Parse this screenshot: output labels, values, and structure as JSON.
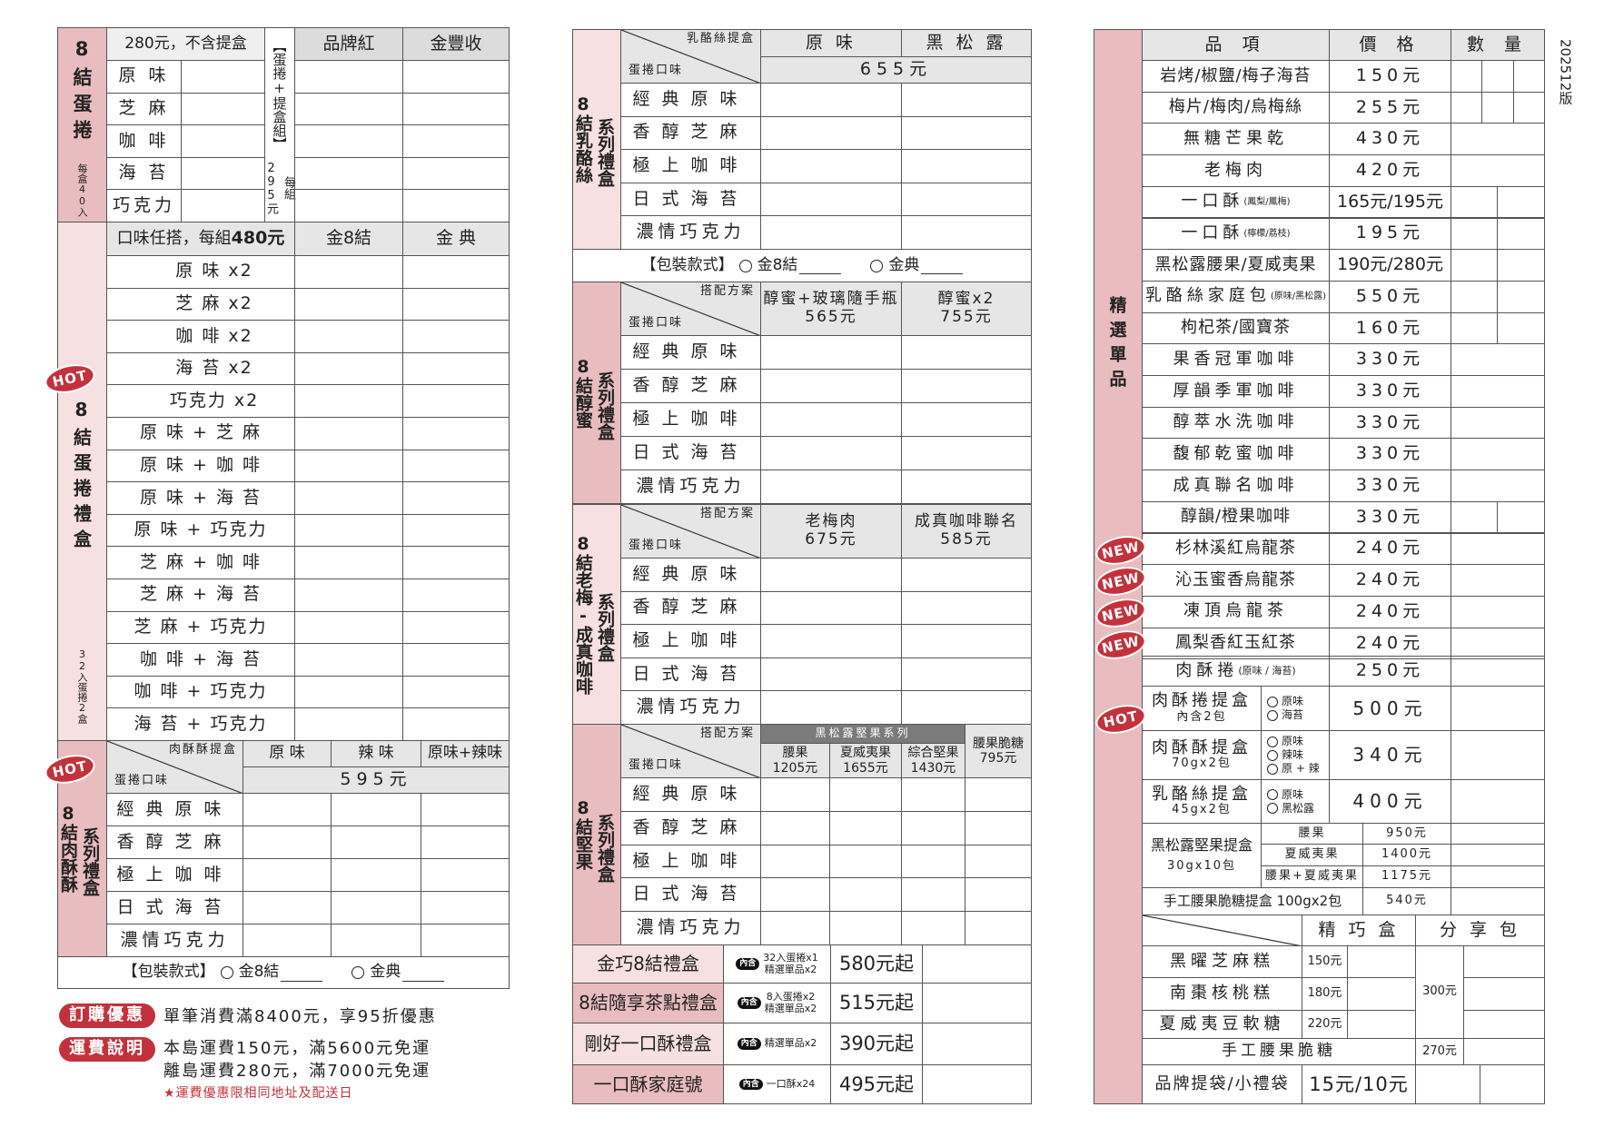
{
  "colors": {
    "pink_dark": "#e9bcbf",
    "pink_light": "#f6e0e1",
    "header_grey": "#e6e6e6",
    "group_grey": "#7b7b7b",
    "badge_red": "#c3323c",
    "note_red": "#c3323c"
  },
  "version": "202512版",
  "left": {
    "eggroll": {
      "label": "8結蛋捲",
      "sublabel": "每盒40入",
      "price_note": "280元，不含提盒",
      "flavors": [
        "原 味",
        "芝 麻",
        "咖 啡",
        "海 苔",
        "巧克力"
      ],
      "set_label": "【蛋捲+提盒組】",
      "set_price": "每組295元",
      "box_headers": [
        "品牌紅",
        "金豐收"
      ]
    },
    "gift": {
      "label": "8結蛋捲禮盒",
      "sublabel": "32入蛋捲2盒",
      "badge": "HOT",
      "header": "口味任搭，每組",
      "header_price": "480元",
      "box_headers": [
        "金8結",
        "金 典"
      ],
      "combos": [
        "原 味 x2",
        "芝 麻 x2",
        "咖 啡 x2",
        "海 苔 x2",
        "巧克力 x2",
        "原 味 + 芝 麻",
        "原 味 + 咖 啡",
        "原 味 + 海 苔",
        "原 味 + 巧克力",
        "芝 麻 + 咖 啡",
        "芝 麻 + 海 苔",
        "芝 麻 + 巧克力",
        "咖 啡 + 海 苔",
        "咖 啡 + 巧克力",
        "海 苔 + 巧克力"
      ]
    },
    "pork": {
      "label": "8結肉酥酥",
      "series": "系列禮盒",
      "badge": "HOT",
      "diag_top": "肉酥酥提盒",
      "diag_bottom": "蛋捲口味",
      "columns": [
        "原 味",
        "辣 味",
        "原味+辣味"
      ],
      "price": "595元",
      "flavors": [
        "經典原味",
        "香醇芝麻",
        "極上咖啡",
        "日式海苔",
        "濃情巧克力"
      ],
      "package": {
        "label": "【包裝款式】",
        "options": [
          "金8結",
          "金典"
        ]
      }
    },
    "notes": {
      "discount_badge": "訂購優惠",
      "discount": "單筆消費滿8400元，享95折優惠",
      "shipping_badge": "運費說明",
      "shipping_lines": [
        "本島運費150元，滿5600元免運",
        "離島運費280元，滿7000元免運"
      ],
      "shipping_note": "★運費優惠限相同地址及配送日"
    }
  },
  "middle": {
    "cheese": {
      "label": "8結乳酪絲",
      "series": "系列禮盒",
      "diag_top": "乳酪絲提盒",
      "diag_bottom": "蛋捲口味",
      "columns": [
        {
          "name": "原 味"
        },
        {
          "name": "黑 松 露"
        }
      ],
      "price": "655元",
      "flavors": [
        "經典原味",
        "香醇芝麻",
        "極上咖啡",
        "日式海苔",
        "濃情巧克力"
      ],
      "package": {
        "label": "【包裝款式】",
        "options": [
          "金8結",
          "金典"
        ]
      }
    },
    "honey": {
      "label": "8結醇蜜",
      "series": "系列禮盒",
      "diag_top": "搭配方案",
      "diag_bottom": "蛋捲口味",
      "columns": [
        {
          "name": "醇蜜+玻璃隨手瓶",
          "price": "565元"
        },
        {
          "name": "醇蜜x2",
          "price": "755元"
        }
      ],
      "flavors": [
        "經典原味",
        "香醇芝麻",
        "極上咖啡",
        "日式海苔",
        "濃情巧克力"
      ]
    },
    "plum": {
      "label": "8結老梅-成真咖啡",
      "series": "系列禮盒",
      "diag_top": "搭配方案",
      "diag_bottom": "蛋捲口味",
      "columns": [
        {
          "name": "老梅肉",
          "price": "675元"
        },
        {
          "name": "成真咖啡聯名",
          "price": "585元"
        }
      ],
      "flavors": [
        "經典原味",
        "香醇芝麻",
        "極上咖啡",
        "日式海苔",
        "濃情巧克力"
      ]
    },
    "nuts": {
      "label": "8結堅果",
      "series": "系列禮盒",
      "diag_top": "搭配方案",
      "diag_bottom": "蛋捲口味",
      "group": "黑松露堅果系列",
      "columns": [
        {
          "name": "腰果",
          "price": "1205元"
        },
        {
          "name": "夏威夷果",
          "price": "1655元"
        },
        {
          "name": "綜合堅果",
          "price": "1430元"
        },
        {
          "name": "腰果脆糖",
          "price": "795元"
        }
      ],
      "flavors": [
        "經典原味",
        "香醇芝麻",
        "極上咖啡",
        "日式海苔",
        "濃情巧克力"
      ]
    },
    "sets": [
      {
        "name": "金巧8結禮盒",
        "tag": "內含",
        "contents": [
          "32入蛋捲x1",
          "精選單品x2"
        ],
        "price": "580元起"
      },
      {
        "name": "8結隨享茶點禮盒",
        "tag": "內含",
        "contents": [
          "8入蛋捲x2",
          "精選單品x2"
        ],
        "price": "515元起"
      },
      {
        "name": "剛好一口酥禮盒",
        "tag": "內含",
        "contents": [
          "精選單品x2"
        ],
        "price": "390元起"
      },
      {
        "name": "一口酥家庭號",
        "tag": "內含",
        "contents": [
          "一口酥x24"
        ],
        "price": "495元起"
      }
    ]
  },
  "right": {
    "label": "精選單品",
    "headers": [
      "品 項",
      "價 格",
      "數 量"
    ],
    "items": [
      {
        "name": "岩烤/椒鹽/梅子海苔",
        "price": "150元"
      },
      {
        "name": "梅片/梅肉/烏梅絲",
        "price": "255元"
      },
      {
        "name": "無糖芒果乾",
        "price": "430元"
      },
      {
        "name": "老梅肉",
        "price": "420元"
      },
      {
        "name": "一口酥",
        "note": "(鳳梨/鳳梅)",
        "price": "165元/195元"
      },
      {
        "name": "一口酥",
        "note": "(檸檬/荔枝)",
        "price": "195元"
      },
      {
        "name": "黑松露腰果/夏威夷果",
        "price": "190元/280元"
      },
      {
        "name": "乳酪絲家庭包",
        "note": "(原味/黑松露)",
        "price": "550元"
      },
      {
        "name": "枸杞茶/國寶茶",
        "price": "160元"
      },
      {
        "name": "果香冠軍咖啡",
        "price": "330元"
      },
      {
        "name": "厚韻季軍咖啡",
        "price": "330元"
      },
      {
        "name": "醇萃水洗咖啡",
        "price": "330元"
      },
      {
        "name": "馥郁乾蜜咖啡",
        "price": "330元"
      },
      {
        "name": "成真聯名咖啡",
        "price": "330元"
      },
      {
        "name": "醇韻/橙果咖啡",
        "price": "330元"
      },
      {
        "name": "杉林溪紅烏龍茶",
        "price": "240元",
        "badge": "NEW"
      },
      {
        "name": "沁玉蜜香烏龍茶",
        "price": "240元",
        "badge": "NEW"
      },
      {
        "name": "凍頂烏龍茶",
        "price": "240元",
        "badge": "NEW"
      },
      {
        "name": "鳳梨香紅玉紅茶",
        "price": "240元",
        "badge": "NEW"
      }
    ],
    "roll": {
      "name": "肉酥捲",
      "note": "(原味 / 海苔)",
      "price": "250元"
    },
    "boxes": [
      {
        "name": "肉酥捲提盒",
        "sub": "內含2包",
        "options": [
          "原味",
          "海苔"
        ],
        "price": "500元",
        "badge": "HOT"
      },
      {
        "name": "肉酥酥提盒",
        "sub": "70gx2包",
        "options": [
          "原味",
          "辣味",
          "原 + 辣"
        ],
        "price": "340元"
      },
      {
        "name": "乳酪絲提盒",
        "sub": "45gx2包",
        "options": [
          "原味",
          "黑松露"
        ],
        "price": "400元"
      }
    ],
    "nut_box": {
      "name": "黑松露堅果提盒",
      "sub": "30gx10包",
      "options": [
        {
          "label": "腰果",
          "price": "950元"
        },
        {
          "label": "夏威夷果",
          "price": "1400元"
        },
        {
          "label": "腰果+夏威夷果",
          "price": "1175元"
        }
      ]
    },
    "brittle_box": {
      "name": "手工腰果脆糖提盒 100gx2包",
      "price": "540元"
    },
    "cakes": {
      "headers": [
        "精 巧 盒",
        "分 享 包"
      ],
      "items": [
        {
          "name": "黑曜芝麻糕",
          "price": "150元"
        },
        {
          "name": "南棗核桃糕",
          "price": "180元"
        },
        {
          "name": "夏威夷豆軟糖",
          "price": "220元"
        }
      ],
      "share_price": "300元",
      "brittle": {
        "name": "手工腰果脆糖",
        "price": "270元"
      }
    },
    "bags": {
      "name": "品牌提袋/小禮袋",
      "price": "15元/10元"
    }
  }
}
